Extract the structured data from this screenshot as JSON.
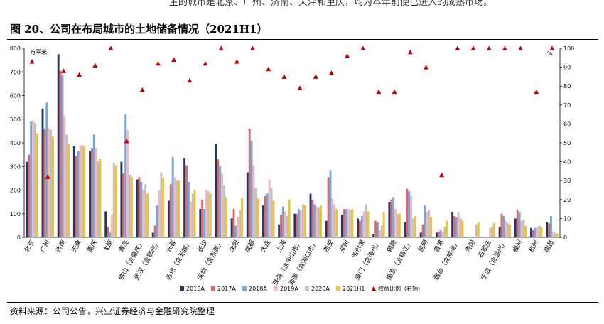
{
  "header": {
    "top_text": "主的城市是北京、广州、济南、天津和重庆，均为本年前便已进入的成熟市场。",
    "figure_title": "图 20、公司在布局城市的土地储备情况（2021H1）"
  },
  "footer": {
    "source": "资料来源：公司公告，兴业证券经济与金融研究院整理"
  },
  "chart_data": {
    "type": "bar",
    "title": "",
    "y_unit": "万平米",
    "y2_unit": "%",
    "ylim": [
      0,
      800
    ],
    "y2lim": [
      0,
      100
    ],
    "y_ticks": [
      0,
      100,
      200,
      300,
      400,
      500,
      600,
      700,
      800
    ],
    "y2_ticks": [
      0,
      10,
      20,
      30,
      40,
      50,
      60,
      70,
      80,
      90,
      100
    ],
    "legend_position": "bottom",
    "categories": [
      "北京",
      "广州",
      "济南",
      "天津",
      "重庆",
      "太原",
      "青岛",
      "佛山（含肇庆）",
      "武汉（含鄂州）",
      "长春",
      "苏州（含无锡）",
      "长沙",
      "深圳（含东莞）",
      "沈阳",
      "成都",
      "大连",
      "上海",
      "珠海（含中山市）",
      "海南（含海口市）",
      "西安",
      "郑州",
      "哈尔滨",
      "厦门（含漳州）",
      "朝赣",
      "南京（含镇江）",
      "昆明",
      "香港",
      "烟台（含威海）",
      "贵阳",
      "石家庄",
      "宁波（含温州）",
      "福州",
      "杭州",
      "南昌"
    ],
    "series": [
      {
        "name": "2016A",
        "color": "#1f3864",
        "values": [
          320,
          545,
          775,
          385,
          365,
          110,
          320,
          245,
          20,
          155,
          335,
          120,
          395,
          80,
          275,
          135,
          55,
          100,
          185,
          70,
          95,
          80,
          15,
          150,
          65,
          20,
          20,
          105,
          0,
          0,
          45,
          80,
          40,
          65
        ]
      },
      {
        "name": "2017A",
        "color": "#e06666",
        "values": [
          350,
          460,
          705,
          345,
          375,
          45,
          270,
          255,
          50,
          225,
          305,
          160,
          330,
          120,
          460,
          175,
          95,
          100,
          160,
          255,
          120,
          70,
          70,
          160,
          205,
          55,
          25,
          90,
          0,
          0,
          100,
          115,
          30,
          60
        ]
      },
      {
        "name": "2018A",
        "color": "#6fa8dc",
        "values": [
          490,
          570,
          685,
          365,
          435,
          20,
          520,
          235,
          135,
          340,
          235,
          120,
          300,
          50,
          410,
          185,
          130,
          120,
          140,
          285,
          120,
          90,
          65,
          170,
          195,
          135,
          30,
          85,
          0,
          0,
          90,
          105,
          40,
          90
        ]
      },
      {
        "name": "2019A",
        "color": "#f4b6c2",
        "values": [
          495,
          460,
          515,
          390,
          375,
          95,
          455,
          200,
          200,
          255,
          150,
          200,
          270,
          85,
          305,
          245,
          110,
          115,
          130,
          165,
          120,
          110,
          30,
          120,
          175,
          110,
          25,
          105,
          0,
          40,
          70,
          70,
          45,
          25
        ]
      },
      {
        "name": "2020A",
        "color": "#c0c0c0",
        "values": [
          485,
          455,
          435,
          390,
          325,
          315,
          265,
          225,
          275,
          240,
          185,
          195,
          220,
          115,
          210,
          210,
          90,
          140,
          125,
          140,
          115,
          140,
          50,
          100,
          80,
          115,
          45,
          80,
          55,
          45,
          60,
          75,
          50,
          20
        ]
      },
      {
        "name": "2021H1",
        "color": "#f2c12e",
        "values": [
          440,
          425,
          395,
          385,
          330,
          305,
          255,
          185,
          250,
          240,
          200,
          185,
          170,
          165,
          165,
          155,
          160,
          135,
          135,
          120,
          120,
          110,
          105,
          100,
          90,
          85,
          70,
          70,
          65,
          60,
          55,
          50,
          45,
          15
        ]
      }
    ],
    "ratio_series": {
      "name": "权益比例（右轴）",
      "color": "#c00000",
      "values": [
        93,
        32,
        88,
        86,
        91,
        100,
        51,
        78,
        92,
        94,
        83,
        92,
        100,
        93,
        100,
        89,
        85,
        79,
        85,
        87,
        96,
        100,
        77,
        77,
        98,
        90,
        33,
        100,
        100,
        100,
        100,
        100,
        77,
        100
      ]
    }
  }
}
